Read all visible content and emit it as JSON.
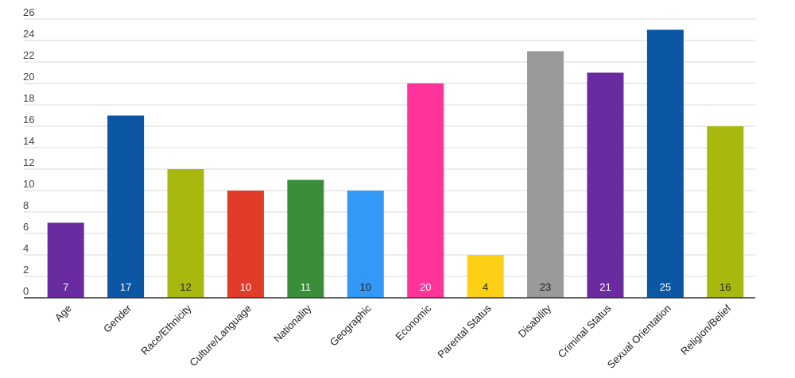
{
  "chart_data": {
    "type": "bar",
    "title": "",
    "xlabel": "",
    "ylabel": "",
    "categories": [
      "Age",
      "Gender",
      "Race/Ethnicity",
      "Culture/Language",
      "Nationality",
      "Geographic",
      "Economic",
      "Parental Status",
      "Disability",
      "Criminal Status",
      "Sexual Orientation",
      "Religion/Belief"
    ],
    "values": [
      7,
      17,
      12,
      10,
      11,
      10,
      20,
      4,
      23,
      21,
      25,
      16
    ],
    "data_labels": [
      "7",
      "17",
      "12",
      "10",
      "11",
      "10",
      "20",
      "4",
      "23",
      "21",
      "25",
      "16"
    ],
    "colors": [
      "#6a2aa0",
      "#0b57a4",
      "#a8b80e",
      "#e03c27",
      "#3a8e39",
      "#3399f7",
      "#ff3399",
      "#fdd017",
      "#999999",
      "#6a2aa0",
      "#0b57a4",
      "#a8b80e"
    ],
    "label_colors": [
      "#ffffff",
      "#ffffff",
      "#222222",
      "#ffffff",
      "#ffffff",
      "#222222",
      "#ffffff",
      "#222222",
      "#222222",
      "#ffffff",
      "#ffffff",
      "#222222"
    ],
    "yticks": [
      0,
      2,
      4,
      6,
      8,
      10,
      12,
      14,
      16,
      18,
      20,
      22,
      24,
      26
    ],
    "ylim": [
      0,
      26
    ],
    "grid": true,
    "legend": "none"
  }
}
